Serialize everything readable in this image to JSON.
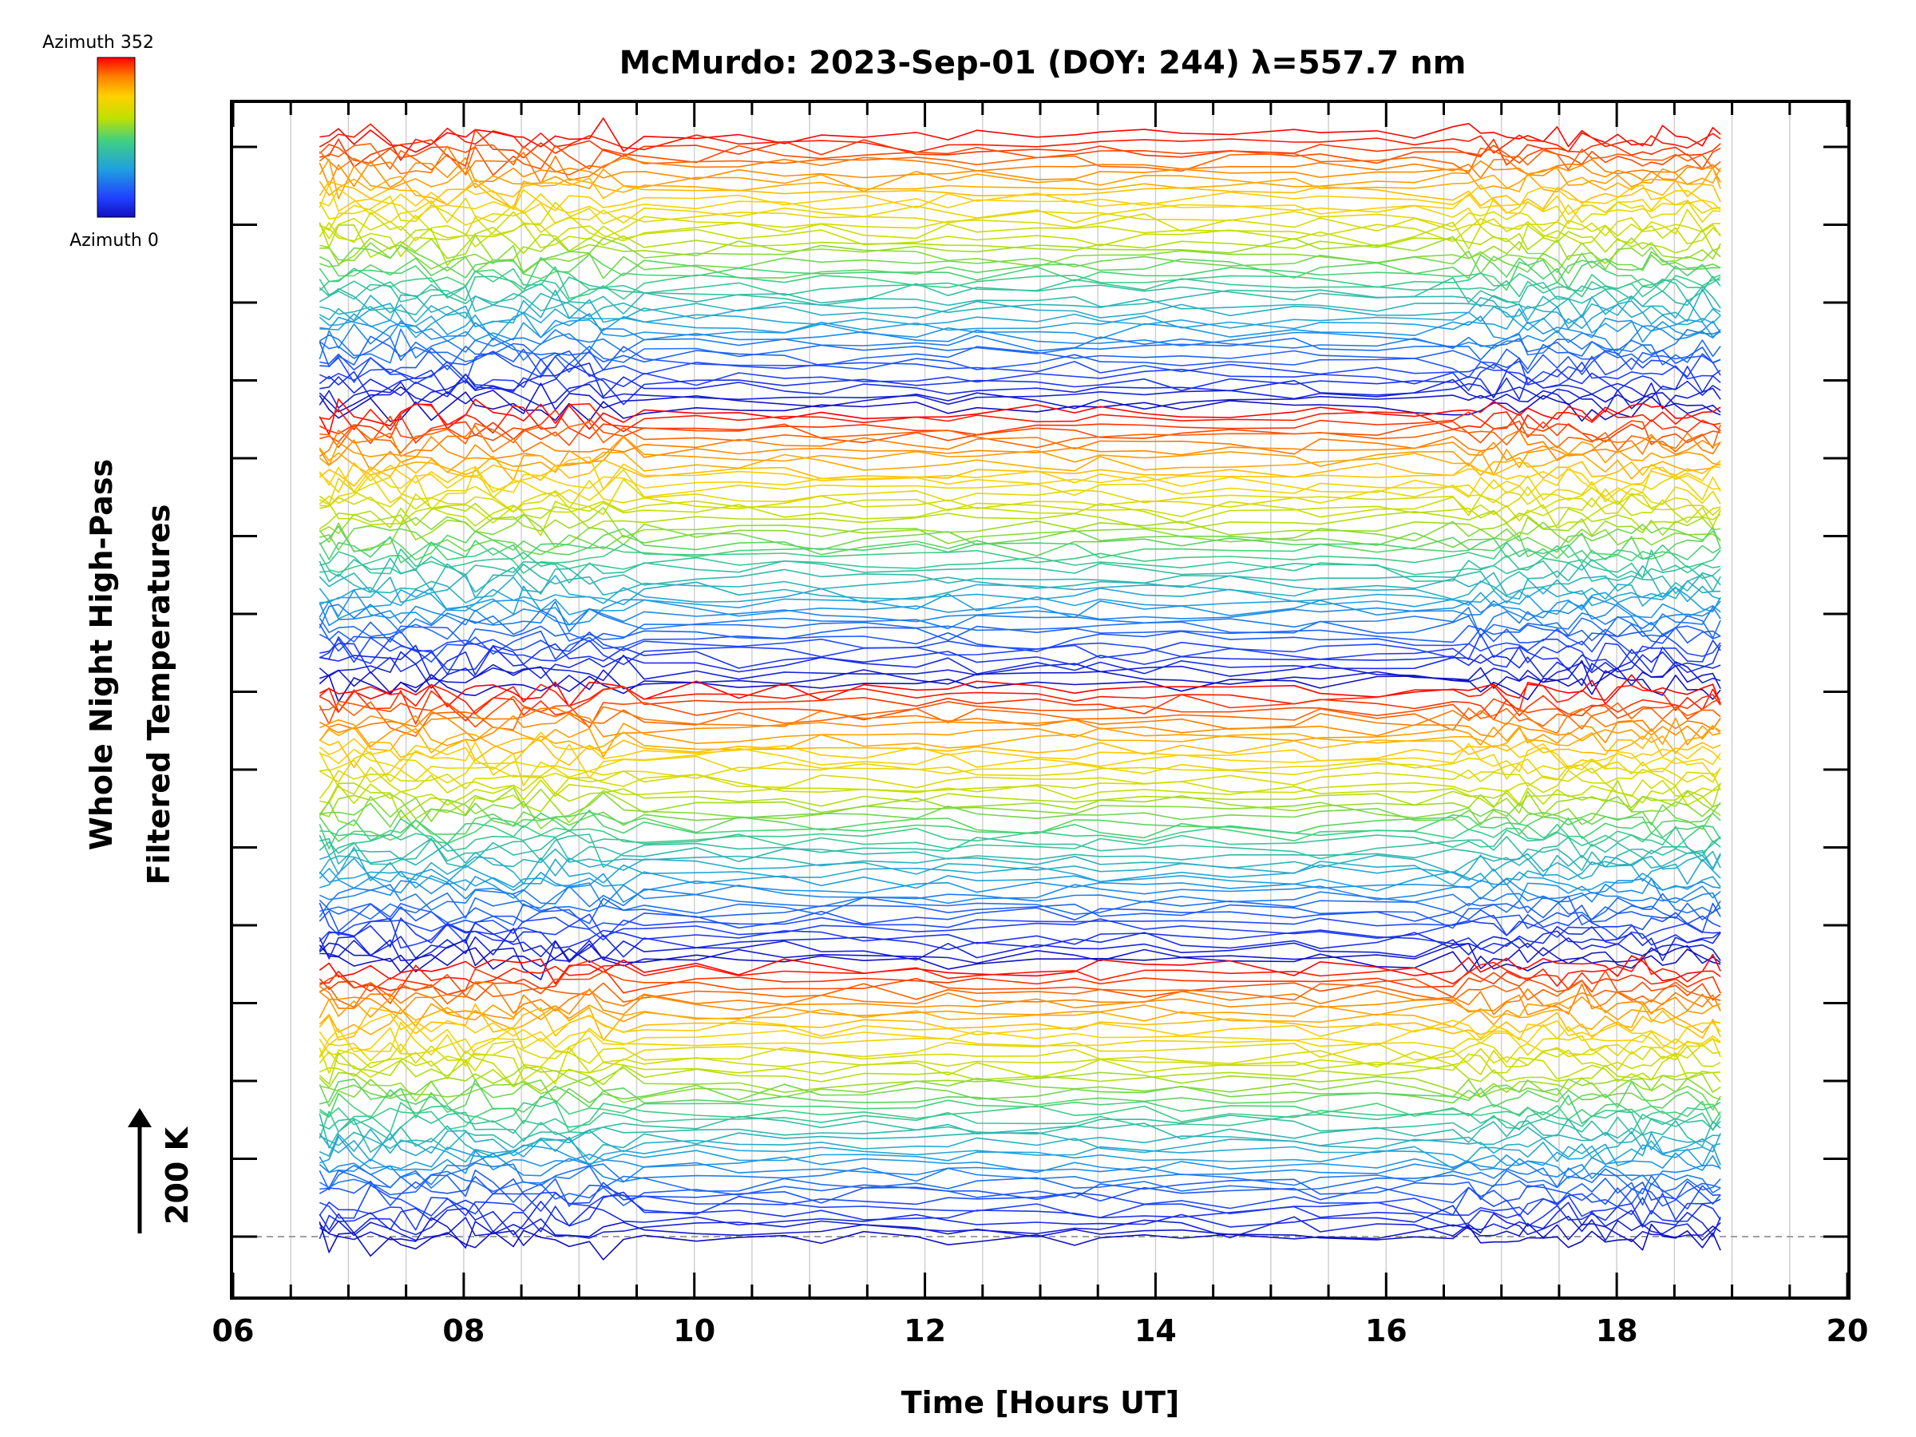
{
  "chart_data": {
    "type": "line",
    "title": "McMurdo: 2023-Sep-01 (DOY: 244) λ=557.7 nm",
    "xlabel": "Time [Hours UT]",
    "ylabel_line1": "Whole Night High-Pass",
    "ylabel_line2": "Filtered Temperatures",
    "scale_label": "200 K",
    "xlim": [
      6,
      20
    ],
    "x_ticks": [
      "06",
      "08",
      "10",
      "12",
      "14",
      "16",
      "18",
      "20"
    ],
    "x_data_range": [
      6.75,
      18.9
    ],
    "grid": "vertical lines every 0.5 h",
    "colorbar": {
      "top_label": "Azimuth 352",
      "bottom_label": "Azimuth 0",
      "colors": [
        "#ff0000",
        "#ff8000",
        "#ffd000",
        "#c0e000",
        "#40d080",
        "#20a0e0",
        "#2040ff",
        "#1010c0"
      ]
    },
    "series_count": 176,
    "series_groups": 4,
    "azimuths_per_group": 44,
    "colors": {
      "axis": "#000000",
      "grid": "#d0d0d0",
      "baseline": "#a0a0a0"
    }
  }
}
